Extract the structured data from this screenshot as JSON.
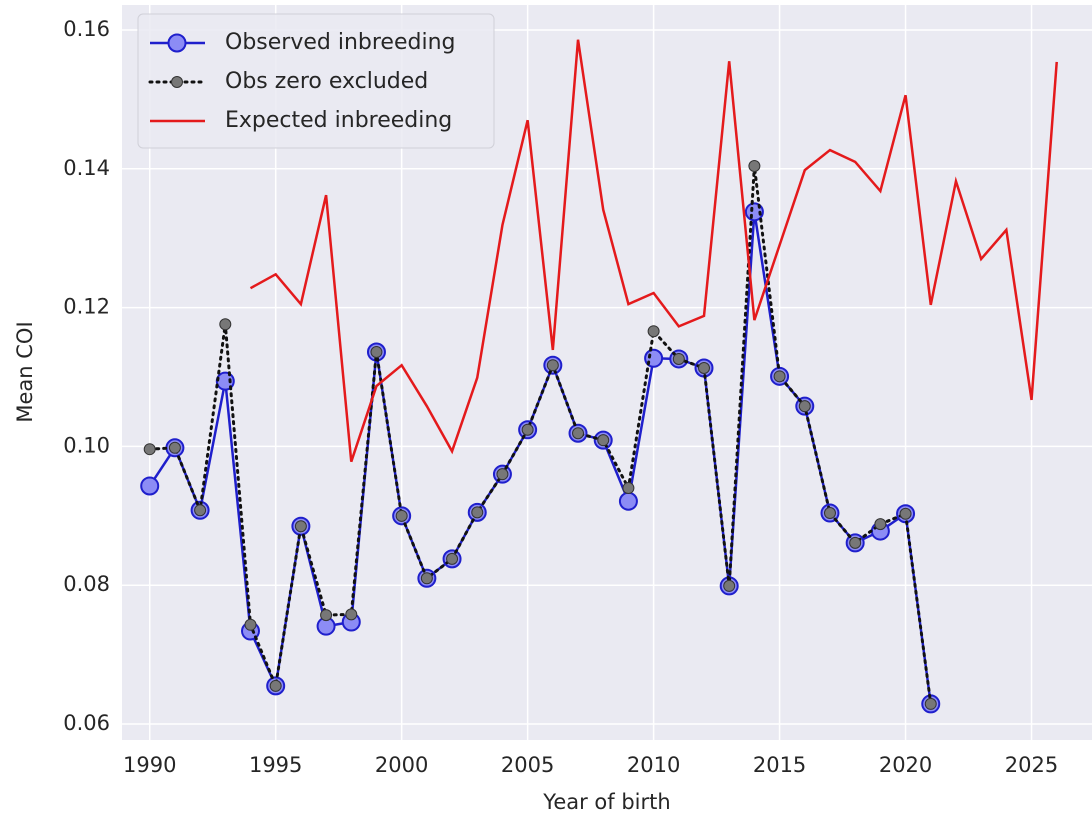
{
  "chart_data": {
    "type": "line",
    "xlabel": "Year of birth",
    "ylabel": "Mean COI",
    "x": [
      1990,
      1991,
      1992,
      1993,
      1994,
      1995,
      1996,
      1997,
      1998,
      1999,
      2000,
      2001,
      2002,
      2003,
      2004,
      2005,
      2006,
      2007,
      2008,
      2009,
      2010,
      2011,
      2012,
      2013,
      2014,
      2015,
      2016,
      2017,
      2018,
      2019,
      2020,
      2021,
      2022,
      2023,
      2024,
      2025,
      2026
    ],
    "series": [
      {
        "name": "Observed inbreeding",
        "color": "#1f1fcc",
        "marker": "o",
        "linestyle": "solid",
        "values": [
          0.0943,
          0.0998,
          0.0908,
          0.1094,
          0.0734,
          0.0655,
          0.0885,
          0.0741,
          0.0747,
          0.1136,
          0.09,
          0.081,
          0.0838,
          0.0905,
          0.096,
          0.1024,
          0.1117,
          0.1019,
          0.1009,
          0.0921,
          0.1127,
          0.1126,
          0.1113,
          0.0799,
          0.1338,
          0.1101,
          0.1058,
          0.0904,
          0.0861,
          0.0878,
          0.0903,
          0.0629,
          null,
          null,
          null,
          null,
          null
        ]
      },
      {
        "name": "Obs zero excluded",
        "color": "#111111",
        "marker": "o",
        "linestyle": "dotted",
        "values": [
          0.0996,
          0.0998,
          0.0908,
          0.1176,
          0.0743,
          0.0655,
          0.0885,
          0.0757,
          0.0758,
          0.1136,
          0.09,
          0.081,
          0.0838,
          0.0905,
          0.096,
          0.1024,
          0.1117,
          0.1019,
          0.1009,
          0.094,
          0.1166,
          0.1126,
          0.1113,
          0.0799,
          0.1404,
          0.1101,
          0.1058,
          0.0904,
          0.0861,
          0.0888,
          0.0903,
          0.0629,
          null,
          null,
          null,
          null,
          null
        ]
      },
      {
        "name": "Expected inbreeding",
        "color": "#e41a1c",
        "marker": "none",
        "linestyle": "solid",
        "values": [
          null,
          null,
          null,
          null,
          0.1228,
          0.1248,
          0.1205,
          0.1362,
          0.0978,
          0.1087,
          0.1117,
          0.1058,
          0.0993,
          0.1099,
          0.1319,
          0.147,
          0.1139,
          0.1586,
          0.1341,
          0.1205,
          0.1221,
          0.1173,
          0.1188,
          0.1555,
          0.1182,
          0.129,
          0.1398,
          0.1427,
          0.141,
          0.1368,
          0.1506,
          0.1204,
          0.1382,
          0.127,
          0.1312,
          0.1067,
          0.1554
        ]
      }
    ],
    "xlim": [
      1988.9,
      2027.4
    ],
    "ylim": [
      0.0577,
      0.1636
    ],
    "xticks": [
      1990,
      1995,
      2000,
      2005,
      2010,
      2015,
      2020,
      2025
    ],
    "yticks": [
      {
        "value": 0.06,
        "label": "0.06"
      },
      {
        "value": 0.08,
        "label": "0.08"
      },
      {
        "value": 0.1,
        "label": "0.10"
      },
      {
        "value": 0.12,
        "label": "0.12"
      },
      {
        "value": 0.14,
        "label": "0.14"
      },
      {
        "value": 0.16,
        "label": "0.16"
      }
    ],
    "grid": true,
    "legend": "upper left"
  }
}
